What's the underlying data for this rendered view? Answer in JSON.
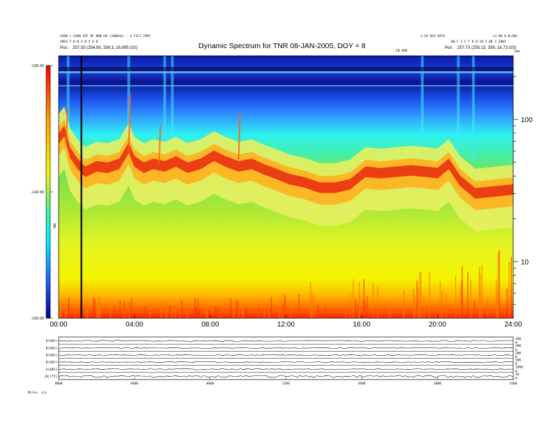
{
  "header": {
    "title": "Dynamic Spectrum for TNR 08-JAN-2005, DOY = 8",
    "left_line1": "G300 > G300 SPC BF B0B D0 (100kHz) - A FILT FBPC",
    "left_line2": "ARGS F B B 3 B 5 0 0",
    "left_line3_label": "Pos:",
    "left_line3_value": "257.53 (254.93, 338.3, 16.895 GS)",
    "right_line1_left": "1.10 VEX DATA",
    "right_line1_right": "L3 B0 0 B=301",
    "right_line2": "B0 F 1 C T R B T0 2 00 3 2002",
    "right_line3_label": "Pos:",
    "right_line3_value": "257.73 (255.13, 339, 16.73 GS)",
    "center_small": "CB VDB",
    "right_corner": "kHz"
  },
  "colorbar": {
    "label": "TNR",
    "ticks": [
      "-130.00",
      "-142.50",
      "-155.00"
    ]
  },
  "bottom_legend": "Mcles. oly",
  "chart_data": {
    "type": "heatmap",
    "title": "Dynamic Spectrum for TNR 08-JAN-2005, DOY = 8",
    "x_tick_labels": [
      "00:00",
      "04:00",
      "08:00",
      "12:00",
      "16:00",
      "20:00",
      "24:00"
    ],
    "x_range_hours": [
      0,
      24
    ],
    "y_scale": "log",
    "y_tick_labels": [
      "100",
      "10"
    ],
    "y_range_khz": [
      4,
      280
    ],
    "color_range": [
      -155.0,
      -130.0
    ],
    "marker_line_hour": 1.2,
    "emission_ridge_khz": [
      [
        0.0,
        75
      ],
      [
        0.3,
        85
      ],
      [
        0.6,
        60
      ],
      [
        1.0,
        50
      ],
      [
        1.4,
        44
      ],
      [
        2.0,
        48
      ],
      [
        2.6,
        47
      ],
      [
        3.2,
        50
      ],
      [
        3.7,
        65
      ],
      [
        4.0,
        52
      ],
      [
        4.5,
        47
      ],
      [
        5.0,
        50
      ],
      [
        5.6,
        48
      ],
      [
        6.2,
        52
      ],
      [
        6.8,
        47
      ],
      [
        7.5,
        50
      ],
      [
        8.2,
        57
      ],
      [
        8.8,
        52
      ],
      [
        9.5,
        48
      ],
      [
        10.2,
        50
      ],
      [
        10.8,
        46
      ],
      [
        11.4,
        43
      ],
      [
        12.2,
        39
      ],
      [
        13.0,
        37
      ],
      [
        13.8,
        34
      ],
      [
        14.6,
        34
      ],
      [
        15.4,
        36
      ],
      [
        16.2,
        44
      ],
      [
        17.0,
        43
      ],
      [
        17.8,
        44
      ],
      [
        18.6,
        45
      ],
      [
        19.4,
        44
      ],
      [
        20.0,
        43
      ],
      [
        20.6,
        50
      ],
      [
        21.2,
        38
      ],
      [
        22.0,
        31
      ],
      [
        23.0,
        32
      ],
      [
        24.0,
        33
      ]
    ],
    "stack_panel_labels": [
      "B(ADC)",
      "B(ADC)",
      "B(ADC)",
      "B(ADC)",
      "A(ADC)",
      "|B|(TT)"
    ],
    "stack_panel_right_ticks": [
      [
        "200",
        "0"
      ],
      [
        "200",
        "0"
      ],
      [
        "200",
        "0"
      ],
      [
        "200",
        "0"
      ],
      [
        "1000",
        "0"
      ],
      [
        "10",
        "0"
      ]
    ],
    "stack_x_tick_labels": [
      "0000",
      "0400",
      "0800",
      "1200",
      "1600",
      "2000",
      "2400"
    ]
  }
}
